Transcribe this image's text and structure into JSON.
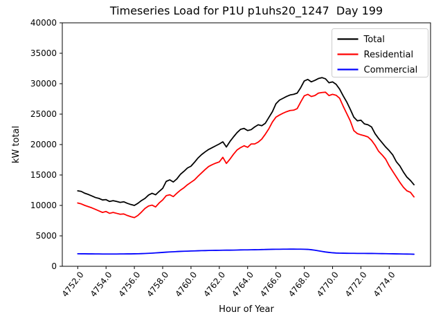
{
  "figure": {
    "title": "Timeseries Load for P1U p1uhs20_1247  Day 199",
    "xlabel": "Hour of Year",
    "ylabel": "kW total"
  },
  "chart_data": {
    "type": "line",
    "title": "Timeseries Load for P1U p1uhs20_1247  Day 199",
    "xlabel": "Hour of Year",
    "ylabel": "kW total",
    "xlim": [
      4750.91,
      4776.92
    ],
    "ylim": [
      0,
      40000
    ],
    "x_ticks": [
      4752,
      4754,
      4756,
      4758,
      4760,
      4762,
      4764,
      4766,
      4768,
      4770,
      4772,
      4774
    ],
    "x_tick_labels": [
      "4752.0",
      "4754.0",
      "4756.0",
      "4758.0",
      "4760.0",
      "4762.0",
      "4764.0",
      "4766.0",
      "4768.0",
      "4770.0",
      "4772.0",
      "4774.0"
    ],
    "y_ticks": [
      0,
      5000,
      10000,
      15000,
      20000,
      25000,
      30000,
      35000,
      40000
    ],
    "y_tick_labels": [
      "0",
      "5000",
      "10000",
      "15000",
      "20000",
      "25000",
      "30000",
      "35000",
      "40000"
    ],
    "grid": false,
    "legend_position": "upper right",
    "x": [
      4752.0,
      4752.25,
      4752.5,
      4752.75,
      4753.0,
      4753.25,
      4753.5,
      4753.75,
      4754.0,
      4754.25,
      4754.5,
      4754.75,
      4755.0,
      4755.25,
      4755.5,
      4755.75,
      4756.0,
      4756.25,
      4756.5,
      4756.75,
      4757.0,
      4757.25,
      4757.5,
      4757.75,
      4758.0,
      4758.25,
      4758.5,
      4758.75,
      4759.0,
      4759.25,
      4759.5,
      4759.75,
      4760.0,
      4760.25,
      4760.5,
      4760.75,
      4761.0,
      4761.25,
      4761.5,
      4761.75,
      4762.0,
      4762.25,
      4762.5,
      4762.75,
      4763.0,
      4763.25,
      4763.5,
      4763.75,
      4764.0,
      4764.25,
      4764.5,
      4764.75,
      4765.0,
      4765.25,
      4765.5,
      4765.75,
      4766.0,
      4766.25,
      4766.5,
      4766.75,
      4767.0,
      4767.25,
      4767.5,
      4767.75,
      4768.0,
      4768.25,
      4768.5,
      4768.75,
      4769.0,
      4769.25,
      4769.5,
      4769.75,
      4770.0,
      4770.25,
      4770.5,
      4770.75,
      4771.0,
      4771.25,
      4771.5,
      4771.75,
      4772.0,
      4772.25,
      4772.5,
      4772.75,
      4773.0,
      4773.25,
      4773.5,
      4773.75,
      4774.0,
      4774.25,
      4774.5,
      4774.75,
      4775.0,
      4775.25,
      4775.5,
      4775.75
    ],
    "series": [
      {
        "name": "Total",
        "color": "#000000",
        "values": [
          12400,
          12300,
          12000,
          11800,
          11550,
          11300,
          11150,
          10900,
          10950,
          10650,
          10780,
          10650,
          10500,
          10600,
          10350,
          10150,
          10000,
          10350,
          10800,
          11150,
          11700,
          12000,
          11750,
          12300,
          12800,
          13950,
          14200,
          13850,
          14350,
          15100,
          15600,
          16150,
          16450,
          17100,
          17800,
          18350,
          18800,
          19200,
          19500,
          19800,
          20100,
          20450,
          19600,
          20500,
          21250,
          21950,
          22500,
          22650,
          22300,
          22450,
          22900,
          23250,
          23100,
          23500,
          24450,
          25400,
          26700,
          27300,
          27600,
          27900,
          28150,
          28250,
          28450,
          29350,
          30450,
          30700,
          30300,
          30550,
          30850,
          31000,
          30800,
          30150,
          30300,
          29900,
          29100,
          28000,
          27000,
          25800,
          24500,
          23900,
          24000,
          23400,
          23250,
          22900,
          21800,
          21000,
          20300,
          19600,
          19000,
          18300,
          17200,
          16500,
          15500,
          14650,
          14100,
          13400
        ]
      },
      {
        "name": "Residential",
        "color": "#ff0000",
        "values": [
          10400,
          10250,
          10000,
          9800,
          9600,
          9350,
          9100,
          8850,
          9000,
          8700,
          8850,
          8700,
          8550,
          8600,
          8350,
          8150,
          8000,
          8350,
          8900,
          9500,
          9900,
          10050,
          9750,
          10400,
          10900,
          11600,
          11750,
          11450,
          12000,
          12500,
          12900,
          13400,
          13800,
          14200,
          14800,
          15350,
          15900,
          16400,
          16700,
          16950,
          17150,
          17900,
          16900,
          17600,
          18400,
          19100,
          19500,
          19800,
          19550,
          20100,
          20100,
          20400,
          20900,
          21700,
          22600,
          23700,
          24500,
          24850,
          25150,
          25400,
          25600,
          25650,
          25900,
          27000,
          28000,
          28250,
          27900,
          28050,
          28450,
          28550,
          28600,
          28050,
          28250,
          28100,
          27600,
          26300,
          25100,
          23900,
          22300,
          21800,
          21600,
          21450,
          21250,
          20700,
          19900,
          18900,
          18300,
          17600,
          16500,
          15600,
          14700,
          13800,
          13000,
          12400,
          12150,
          11400
        ]
      },
      {
        "name": "Commercial",
        "color": "#0000ff",
        "values": [
          2060,
          2050,
          2050,
          2040,
          2040,
          2030,
          2030,
          2020,
          2020,
          2020,
          2020,
          2020,
          2030,
          2030,
          2040,
          2040,
          2050,
          2060,
          2080,
          2100,
          2130,
          2160,
          2200,
          2240,
          2280,
          2320,
          2360,
          2390,
          2420,
          2450,
          2470,
          2490,
          2510,
          2530,
          2550,
          2570,
          2580,
          2600,
          2610,
          2620,
          2630,
          2640,
          2650,
          2650,
          2660,
          2670,
          2690,
          2700,
          2700,
          2710,
          2720,
          2730,
          2750,
          2760,
          2780,
          2790,
          2800,
          2800,
          2810,
          2810,
          2820,
          2820,
          2810,
          2810,
          2800,
          2780,
          2720,
          2640,
          2540,
          2440,
          2350,
          2280,
          2220,
          2180,
          2160,
          2150,
          2140,
          2130,
          2130,
          2120,
          2120,
          2120,
          2110,
          2110,
          2100,
          2090,
          2080,
          2070,
          2060,
          2050,
          2040,
          2030,
          2020,
          2010,
          2000,
          1980
        ]
      }
    ]
  }
}
